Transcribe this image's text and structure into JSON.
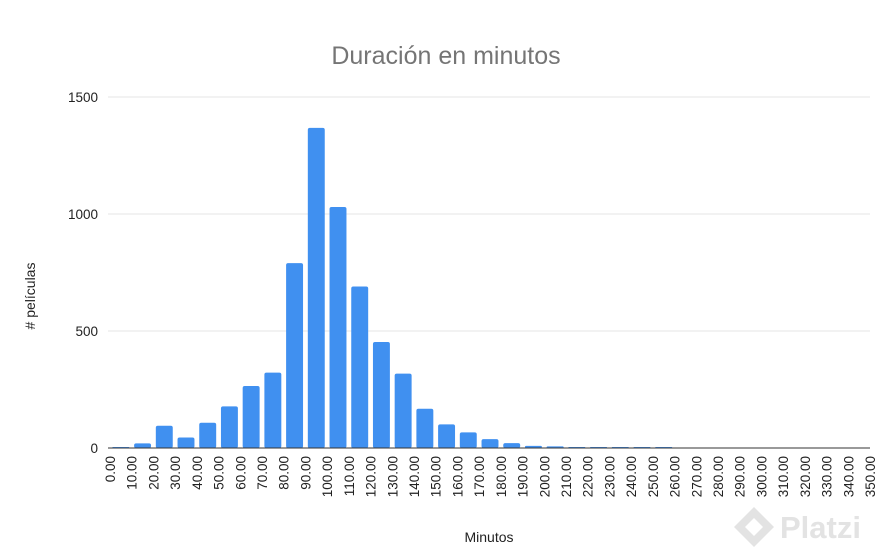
{
  "chart_data": {
    "type": "bar",
    "title": "Duración en minutos",
    "xlabel": "Minutos",
    "ylabel": "# películas",
    "ylim": [
      0,
      1500
    ],
    "yticks": [
      "0",
      "500",
      "1000",
      "1500"
    ],
    "categories": [
      "0.00",
      "10.00",
      "20.00",
      "30.00",
      "40.00",
      "50.00",
      "60.00",
      "70.00",
      "80.00",
      "90.00",
      "100.00",
      "110.00",
      "120.00",
      "130.00",
      "140.00",
      "150.00",
      "160.00",
      "170.00",
      "180.00",
      "190.00",
      "200.00",
      "210.00",
      "220.00",
      "230.00",
      "240.00",
      "250.00",
      "260.00",
      "270.00",
      "280.00",
      "290.00",
      "300.00",
      "310.00",
      "320.00",
      "330.00",
      "340.00",
      "350.00"
    ],
    "values": [
      3,
      20,
      95,
      45,
      108,
      178,
      265,
      322,
      790,
      1368,
      1030,
      690,
      453,
      318,
      168,
      101,
      67,
      38,
      21,
      9,
      7,
      3,
      2,
      1,
      1,
      1,
      0,
      0,
      0,
      0,
      0,
      0,
      0,
      0,
      0,
      0
    ],
    "grid": true,
    "legend": "none",
    "bar_color": "#4090f0",
    "grid_color": "#e6e6e6"
  },
  "watermark": {
    "label": "Platzi",
    "icon": "platzi-logo-icon"
  }
}
